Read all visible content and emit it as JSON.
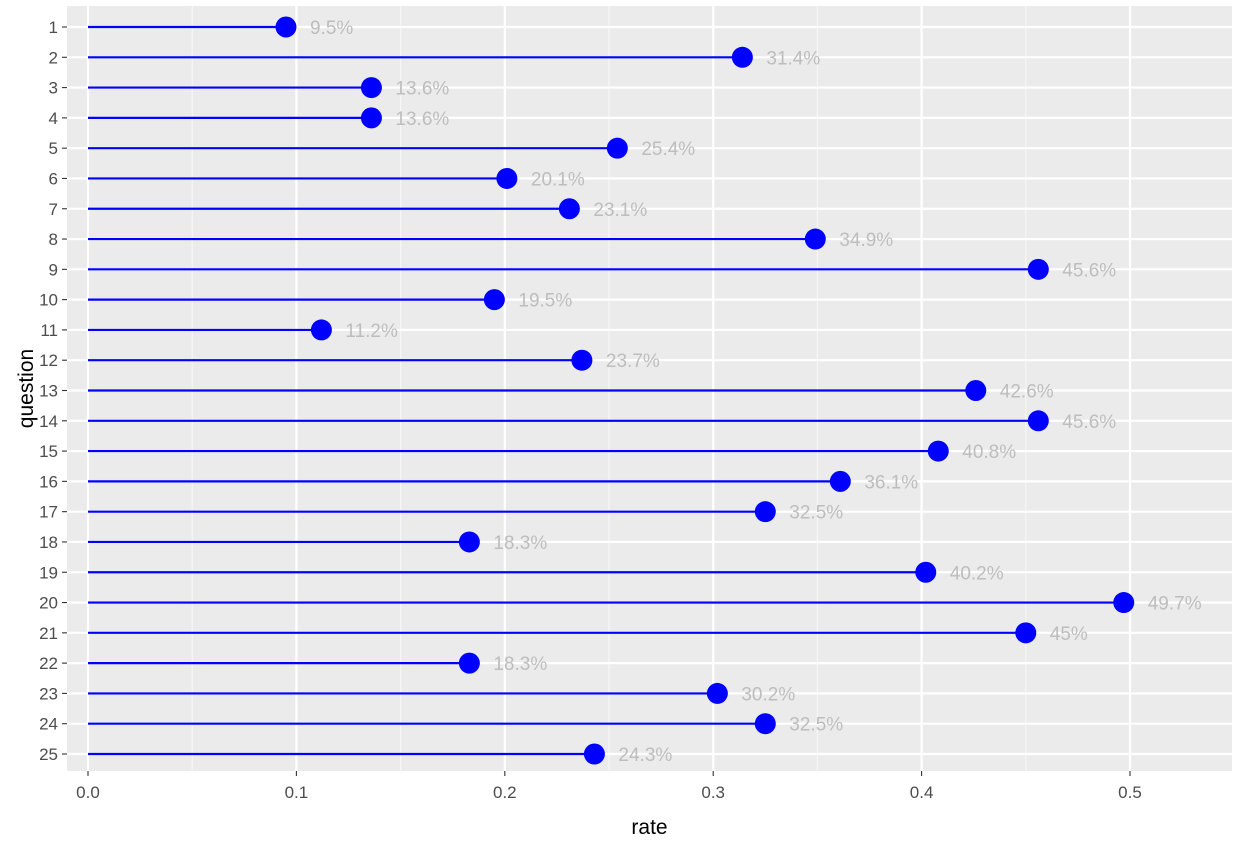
{
  "chart_data": {
    "type": "lollipop",
    "title": "",
    "xlabel": "rate",
    "ylabel": "question",
    "xlim": [
      0,
      0.547
    ],
    "x_ticks": [
      0.0,
      0.1,
      0.2,
      0.3,
      0.4,
      0.5
    ],
    "x_tick_labels": [
      "0.0",
      "0.1",
      "0.2",
      "0.3",
      "0.4",
      "0.5"
    ],
    "grid": true,
    "categories": [
      "1",
      "2",
      "3",
      "4",
      "5",
      "6",
      "7",
      "8",
      "9",
      "10",
      "11",
      "12",
      "13",
      "14",
      "15",
      "16",
      "17",
      "18",
      "19",
      "20",
      "21",
      "22",
      "23",
      "24",
      "25"
    ],
    "values": [
      0.095,
      0.314,
      0.136,
      0.136,
      0.254,
      0.201,
      0.231,
      0.349,
      0.456,
      0.195,
      0.112,
      0.237,
      0.426,
      0.456,
      0.408,
      0.361,
      0.325,
      0.183,
      0.402,
      0.497,
      0.45,
      0.183,
      0.302,
      0.325,
      0.243
    ],
    "labels": [
      "9.5%",
      "31.4%",
      "13.6%",
      "13.6%",
      "25.4%",
      "20.1%",
      "23.1%",
      "34.9%",
      "45.6%",
      "19.5%",
      "11.2%",
      "23.7%",
      "42.6%",
      "45.6%",
      "40.8%",
      "36.1%",
      "32.5%",
      "18.3%",
      "40.2%",
      "49.7%",
      "45%",
      "18.3%",
      "30.2%",
      "32.5%",
      "24.3%"
    ],
    "colors": {
      "panel": "#ebebeb",
      "grid_major": "#ffffff",
      "grid_minor": "#f7f7f7",
      "mark": "#0000ff",
      "data_label": "#bdbdbd",
      "tick_label": "#4d4d4d",
      "axis_title": "#000000",
      "tick": "#333333"
    }
  }
}
